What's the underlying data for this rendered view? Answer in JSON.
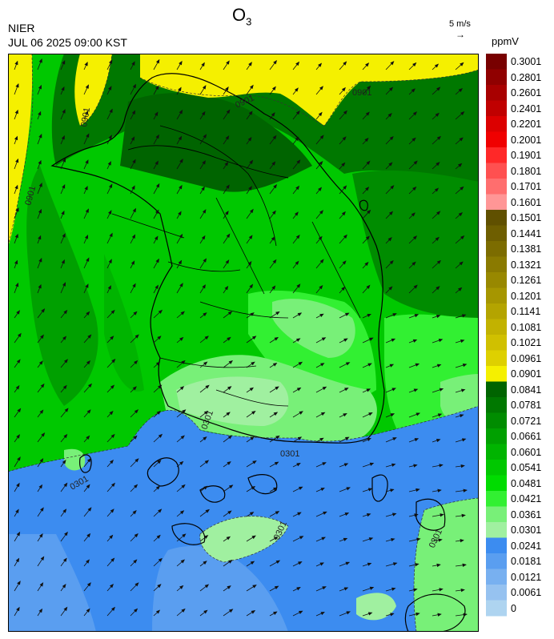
{
  "header": {
    "title": "O",
    "title_sub": "3",
    "org": "NIER",
    "timestamp": "JUL 06 2025 09:00 KST"
  },
  "wind_reference": {
    "label": "5 m/s",
    "arrow": "→"
  },
  "legend": {
    "unit": "ppmV",
    "levels": [
      {
        "label": "0.3001",
        "color": "#780000"
      },
      {
        "label": "0.2801",
        "color": "#900000"
      },
      {
        "label": "0.2601",
        "color": "#a80000"
      },
      {
        "label": "0.2401",
        "color": "#c00000"
      },
      {
        "label": "0.2201",
        "color": "#dc0000"
      },
      {
        "label": "0.2001",
        "color": "#f00000"
      },
      {
        "label": "0.1901",
        "color": "#ff2828"
      },
      {
        "label": "0.1801",
        "color": "#ff5050"
      },
      {
        "label": "0.1701",
        "color": "#ff6e6e"
      },
      {
        "label": "0.1601",
        "color": "#ff9696"
      },
      {
        "label": "0.1501",
        "color": "#605000"
      },
      {
        "label": "0.1441",
        "color": "#6e5e00"
      },
      {
        "label": "0.1381",
        "color": "#7c6c00"
      },
      {
        "label": "0.1321",
        "color": "#8a7a00"
      },
      {
        "label": "0.1261",
        "color": "#988800"
      },
      {
        "label": "0.1201",
        "color": "#a69600"
      },
      {
        "label": "0.1141",
        "color": "#b4a400"
      },
      {
        "label": "0.1081",
        "color": "#c2b200"
      },
      {
        "label": "0.1021",
        "color": "#d0c000"
      },
      {
        "label": "0.0961",
        "color": "#ded000"
      },
      {
        "label": "0.0901",
        "color": "#f5f000"
      },
      {
        "label": "0.0841",
        "color": "#006400"
      },
      {
        "label": "0.0781",
        "color": "#007800"
      },
      {
        "label": "0.0721",
        "color": "#008c00"
      },
      {
        "label": "0.0661",
        "color": "#00a000"
      },
      {
        "label": "0.0601",
        "color": "#00b400"
      },
      {
        "label": "0.0541",
        "color": "#00c800"
      },
      {
        "label": "0.0481",
        "color": "#00dc00"
      },
      {
        "label": "0.0421",
        "color": "#32f032"
      },
      {
        "label": "0.0361",
        "color": "#78f078"
      },
      {
        "label": "0.0301",
        "color": "#a0f0a0"
      },
      {
        "label": "0.0241",
        "color": "#3c8cf0"
      },
      {
        "label": "0.0181",
        "color": "#5a9ef0"
      },
      {
        "label": "0.0121",
        "color": "#78b0f0"
      },
      {
        "label": "0.0061",
        "color": "#96c2f0"
      },
      {
        "label": "0",
        "color": "#aed4f0"
      }
    ]
  },
  "contour_labels": [
    "0901",
    "0901",
    "0901",
    "0901",
    "0301",
    "0301",
    "0301",
    "0301",
    "0301"
  ]
}
